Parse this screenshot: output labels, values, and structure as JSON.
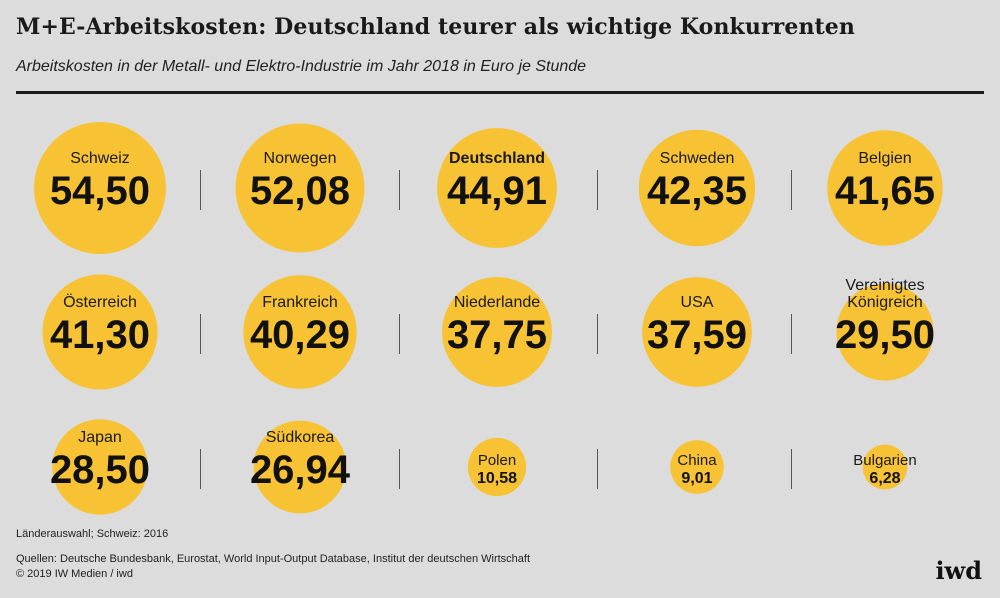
{
  "header": {
    "title": "M+E-Arbeitskosten: Deutschland teurer als wichtige Konkurrenten",
    "subtitle": "Arbeitskosten in der Metall- und Elektro-Industrie im Jahr 2018 in Euro je Stunde"
  },
  "chart_data": {
    "type": "bubble",
    "title": "M+E-Arbeitskosten: Deutschland teurer als wichtige Konkurrenten",
    "subtitle": "Arbeitskosten in der Metall- und Elektro-Industrie im Jahr 2018 in Euro je Stunde",
    "unit": "Euro je Stunde",
    "colors": {
      "bubble": "#f7c234",
      "background": "#dcdcdc",
      "text": "#1a1a1a"
    },
    "highlight": "Deutschland",
    "items": [
      {
        "country": "Schweiz",
        "value": 54.5,
        "label": "54,50"
      },
      {
        "country": "Norwegen",
        "value": 52.08,
        "label": "52,08"
      },
      {
        "country": "Deutschland",
        "value": 44.91,
        "label": "44,91"
      },
      {
        "country": "Schweden",
        "value": 42.35,
        "label": "42,35"
      },
      {
        "country": "Belgien",
        "value": 41.65,
        "label": "41,65"
      },
      {
        "country": "Österreich",
        "value": 41.3,
        "label": "41,30"
      },
      {
        "country": "Frankreich",
        "value": 40.29,
        "label": "40,29"
      },
      {
        "country": "Niederlande",
        "value": 37.75,
        "label": "37,75"
      },
      {
        "country": "USA",
        "value": 37.59,
        "label": "37,59"
      },
      {
        "country": "Vereinigtes Königreich",
        "value": 29.5,
        "label": "29,50",
        "label_lines": [
          "Vereinigtes",
          "Königreich"
        ]
      },
      {
        "country": "Japan",
        "value": 28.5,
        "label": "28,50"
      },
      {
        "country": "Südkorea",
        "value": 26.94,
        "label": "26,94"
      },
      {
        "country": "Polen",
        "value": 10.58,
        "label": "10,58"
      },
      {
        "country": "China",
        "value": 9.01,
        "label": "9,01"
      },
      {
        "country": "Bulgarien",
        "value": 6.28,
        "label": "6,28"
      }
    ]
  },
  "footer": {
    "note": "Länderauswahl; Schweiz: 2016",
    "sources": "Quellen: Deutsche Bundesbank, Eurostat, World Input-Output Database, Institut der deutschen Wirtschaft",
    "copyright": "© 2019 IW Medien / iwd",
    "logo": "iwd"
  }
}
